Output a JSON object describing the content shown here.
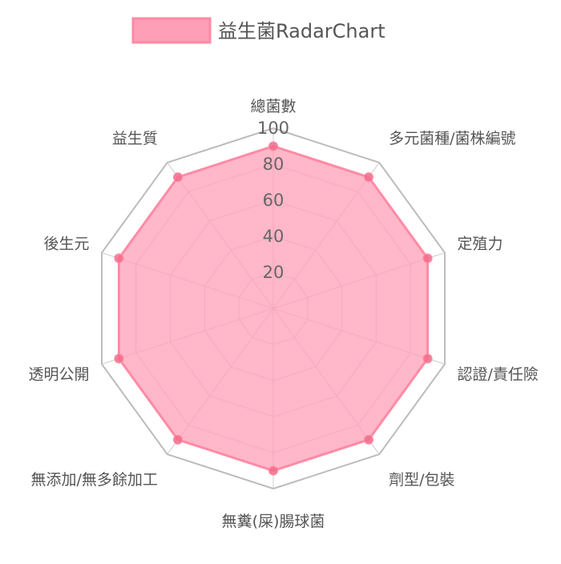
{
  "chart_data": {
    "type": "radar",
    "labels": [
      "總菌數",
      "多元菌種/菌株編號",
      "定殖力",
      "認證/責任險",
      "劑型/包裝",
      "無糞(屎)腸球菌",
      "無添加/無多餘加工",
      "透明公開",
      "後生元",
      "益生質"
    ],
    "series": [
      {
        "name": "益生菌RadarChart",
        "values": [
          90,
          90,
          90,
          90,
          90,
          90,
          90,
          90,
          90,
          90
        ]
      }
    ],
    "r_ticks": [
      20,
      40,
      60,
      80,
      100
    ],
    "rlim": [
      0,
      100
    ],
    "grid": true,
    "legend_position": "top",
    "colors": {
      "fill": "#ff9fb7",
      "stroke": "#ff8aa5",
      "point": "#f26b8a",
      "grid": "#cccccc",
      "outer_grid": "#bbbbbb"
    }
  }
}
